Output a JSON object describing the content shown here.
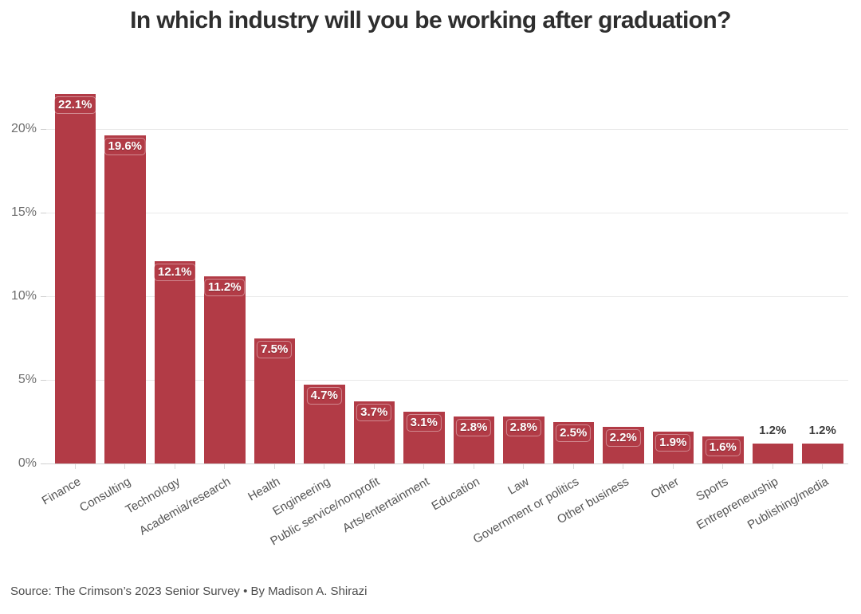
{
  "chart_data": {
    "type": "bar",
    "title": "In which industry will you be working after graduation?",
    "categories": [
      "Finance",
      "Consulting",
      "Technology",
      "Academia/research",
      "Health",
      "Engineering",
      "Public service/nonprofit",
      "Arts/entertainment",
      "Education",
      "Law",
      "Government or politics",
      "Other business",
      "Other",
      "Sports",
      "Entrepreneurship",
      "Publishing/media"
    ],
    "values": [
      22.1,
      19.6,
      12.1,
      11.2,
      7.5,
      4.7,
      3.7,
      3.1,
      2.8,
      2.8,
      2.5,
      2.2,
      1.9,
      1.6,
      1.2,
      1.2
    ],
    "value_labels": [
      "22.1%",
      "19.6%",
      "12.1%",
      "11.2%",
      "7.5%",
      "4.7%",
      "3.7%",
      "3.1%",
      "2.8%",
      "2.8%",
      "2.5%",
      "2.2%",
      "1.9%",
      "1.6%",
      "1.2%",
      "1.2%"
    ],
    "xlabel": "",
    "ylabel": "",
    "y_ticks": [
      {
        "value": 0,
        "label": "0%"
      },
      {
        "value": 5,
        "label": "5%"
      },
      {
        "value": 10,
        "label": "10%"
      },
      {
        "value": 15,
        "label": "15%"
      },
      {
        "value": 20,
        "label": "20%"
      }
    ],
    "ylim": [
      0,
      23.3
    ],
    "grid": "horizontal",
    "legend": "none",
    "label_outside_threshold": 1.5,
    "colors": {
      "bar": "#b23b46",
      "label_inside": "#ffffff",
      "label_outside": "#3d3d3d",
      "axis_text": "#6e6e6e",
      "category_text": "#555555",
      "gridline": "#e9e9e9",
      "baseline": "#d2d2d2",
      "tick": "#d9d9d9",
      "title_text": "#2e2e2e",
      "source_text": "#4d4d4d"
    }
  },
  "footer": {
    "source": "Source: The Crimson’s 2023 Senior Survey • By Madison A. Shirazi"
  }
}
